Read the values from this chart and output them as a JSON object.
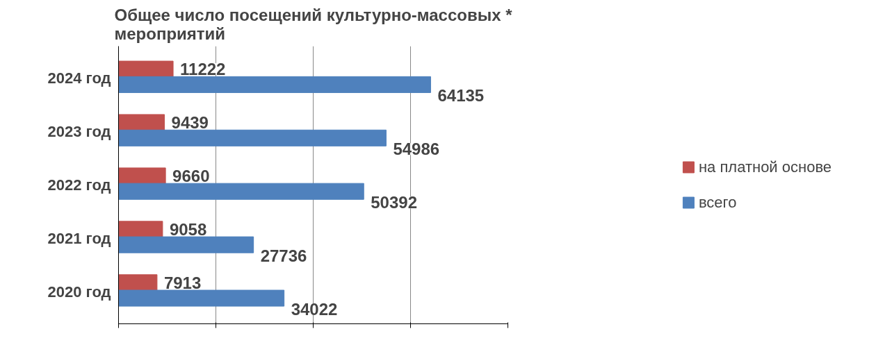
{
  "chart_data": {
    "type": "bar",
    "orientation": "horizontal",
    "title": "Общее число посещений культурно-массовых *\nмероприятий",
    "categories": [
      "2024 год",
      "2023 год",
      "2022 год",
      "2021 год",
      "2020 год"
    ],
    "series": [
      {
        "name": "на платной основе",
        "color": "#c0504d",
        "values": [
          11222,
          9439,
          9660,
          9058,
          7913
        ]
      },
      {
        "name": "всего",
        "color": "#4f81bd",
        "values": [
          64135,
          54986,
          50392,
          27736,
          34022
        ]
      }
    ],
    "xlim": [
      0,
      80000
    ],
    "xticks": [
      {
        "value": 0,
        "label": null
      },
      {
        "value": 20000,
        "label": null
      },
      {
        "value": 40000,
        "label": null
      },
      {
        "value": 60000,
        "label": null
      },
      {
        "value": 80000,
        "label": null
      }
    ],
    "tick_labels": "y",
    "grid": "x",
    "legend": "right",
    "data_labels": true
  }
}
